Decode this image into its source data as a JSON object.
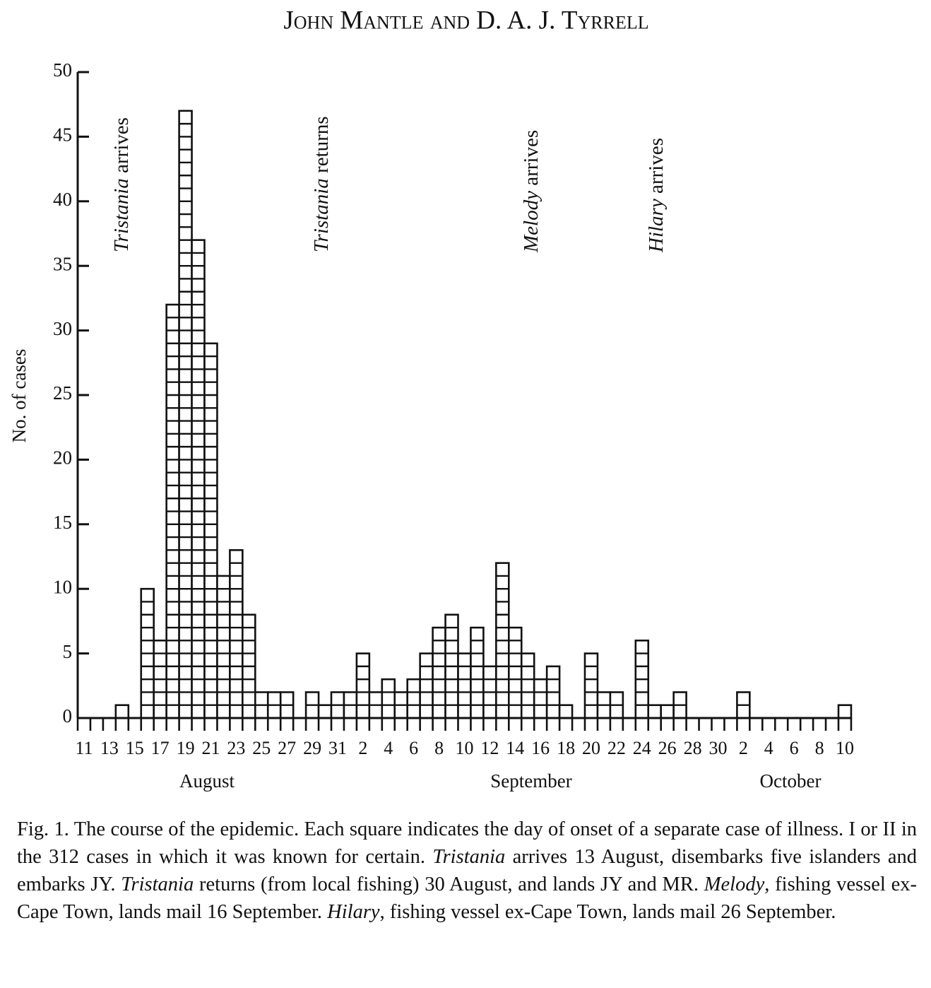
{
  "header": "John Mantle and D. A. J. Tyrrell",
  "chart_data": {
    "type": "bar",
    "ylabel": "No. of cases",
    "categories": [
      "11",
      null,
      "13",
      null,
      "15",
      null,
      "17",
      null,
      "19",
      null,
      "21",
      null,
      "23",
      null,
      "25",
      null,
      "27",
      null,
      "29",
      null,
      "31",
      null,
      "2",
      null,
      "4",
      null,
      "6",
      null,
      "8",
      null,
      "10",
      null,
      "12",
      null,
      "14",
      null,
      "16",
      null,
      "18",
      null,
      "20",
      null,
      "22",
      null,
      "24",
      null,
      "26",
      null,
      "28",
      null,
      "30",
      null,
      "2",
      null,
      "4",
      null,
      "6",
      null,
      "8",
      null,
      "10"
    ],
    "values": [
      0,
      0,
      0,
      1,
      0,
      10,
      6,
      32,
      47,
      37,
      29,
      11,
      13,
      8,
      2,
      2,
      2,
      0,
      2,
      1,
      2,
      2,
      5,
      2,
      3,
      2,
      3,
      5,
      7,
      8,
      5,
      7,
      4,
      12,
      7,
      5,
      3,
      4,
      1,
      0,
      5,
      2,
      2,
      0,
      6,
      1,
      1,
      2,
      0,
      0,
      0,
      0,
      2,
      0,
      0,
      0,
      0,
      0,
      0,
      0,
      1
    ],
    "months": [
      "August",
      "September",
      "October"
    ],
    "annotations": [
      {
        "ship": "Tristania",
        "event": "arrives"
      },
      {
        "ship": "Tristania",
        "event": "returns"
      },
      {
        "ship": "Melody",
        "event": "arrives"
      },
      {
        "ship": "Hilary",
        "event": "arrives"
      }
    ],
    "ylim": [
      0,
      50
    ],
    "yticks": [
      0,
      5,
      10,
      15,
      20,
      25,
      30,
      35,
      40,
      45,
      50
    ],
    "color": "#ffffff",
    "grid": false
  },
  "caption": [
    {
      "text": "Fig. 1. The course of the epidemic. Each square indicates the day of onset of a separate case of illness. I or II in the 312 cases in which it was known for certain. ",
      "italic": false
    },
    {
      "text": "Tristania",
      "italic": true
    },
    {
      "text": " arrives 13 August, disembarks five islanders and embarks JY. ",
      "italic": false
    },
    {
      "text": "Tristania",
      "italic": true
    },
    {
      "text": " returns (from local fishing) 30 August, and lands JY and MR. ",
      "italic": false
    },
    {
      "text": "Melody",
      "italic": true
    },
    {
      "text": ", fishing vessel ex-Cape Town, lands mail 16 September. ",
      "italic": false
    },
    {
      "text": "Hilary",
      "italic": true
    },
    {
      "text": ", fishing vessel ex-Cape Town, lands mail 26 September.",
      "italic": false
    }
  ]
}
